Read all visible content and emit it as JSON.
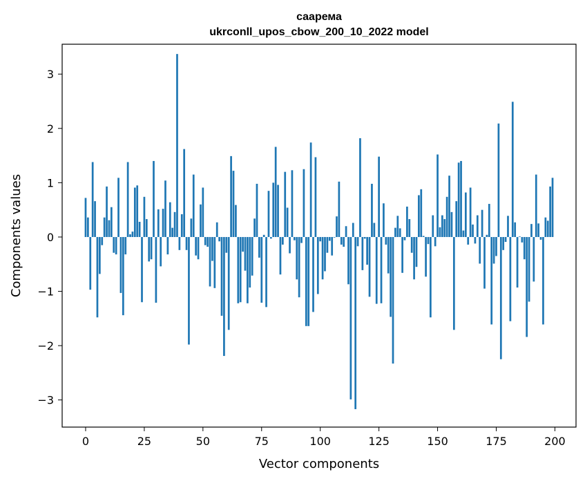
{
  "chart_data": {
    "type": "bar",
    "title_lines": [
      "саарема",
      "ukrconll_upos_cbow_200_10_2022 model"
    ],
    "xlabel": "Vector components",
    "ylabel": "Components values",
    "xlim": [
      -10,
      209
    ],
    "ylim": [
      -3.5,
      3.55
    ],
    "x_ticks": [
      0,
      25,
      50,
      75,
      100,
      125,
      150,
      175,
      200
    ],
    "x_tick_labels": [
      "0",
      "25",
      "50",
      "75",
      "100",
      "125",
      "150",
      "175",
      "200"
    ],
    "y_ticks": [
      -3,
      -2,
      -1,
      0,
      1,
      2,
      3
    ],
    "y_tick_labels": [
      "−3",
      "−2",
      "−1",
      "0",
      "1",
      "2",
      "3"
    ],
    "grid": false,
    "bar_color": "#1f77b4",
    "values": [
      0.72,
      0.36,
      -0.97,
      1.38,
      0.66,
      -1.48,
      -0.68,
      -0.15,
      0.36,
      0.93,
      0.31,
      0.55,
      -0.29,
      -0.32,
      1.09,
      -1.03,
      -1.44,
      -0.32,
      1.38,
      0.05,
      0.1,
      0.91,
      0.95,
      0.28,
      -1.2,
      0.74,
      0.33,
      -0.45,
      -0.41,
      1.4,
      -1.21,
      0.51,
      -0.54,
      0.52,
      1.04,
      -0.32,
      0.64,
      0.17,
      0.46,
      3.37,
      -0.24,
      0.42,
      1.62,
      -0.24,
      -1.98,
      0.34,
      1.15,
      -0.34,
      -0.41,
      0.6,
      0.91,
      -0.15,
      -0.18,
      -0.91,
      -0.44,
      -0.94,
      0.27,
      -0.08,
      -1.45,
      -2.19,
      -0.29,
      -1.71,
      1.49,
      1.22,
      0.59,
      -1.22,
      -1.2,
      -0.27,
      -0.62,
      -1.22,
      -0.93,
      -0.71,
      0.34,
      0.98,
      -0.38,
      -1.21,
      0.04,
      -1.29,
      0.85,
      -0.03,
      1.0,
      1.66,
      0.96,
      -0.69,
      -0.14,
      1.2,
      0.54,
      -0.3,
      1.23,
      -0.06,
      -0.78,
      -1.11,
      -0.11,
      1.25,
      -1.64,
      -1.64,
      1.74,
      -1.38,
      1.47,
      -1.05,
      -0.08,
      -0.78,
      -0.63,
      -0.29,
      -0.07,
      -0.34,
      -0.01,
      0.38,
      1.02,
      -0.14,
      -0.18,
      0.2,
      -0.87,
      -2.99,
      0.26,
      -3.17,
      -0.17,
      1.82,
      -0.61,
      -0.03,
      -0.51,
      -1.1,
      0.98,
      0.26,
      -1.23,
      1.48,
      -1.22,
      0.62,
      -0.14,
      -0.67,
      -1.47,
      -2.33,
      0.17,
      0.39,
      0.16,
      -0.66,
      -0.06,
      0.56,
      0.33,
      -0.29,
      -0.78,
      -0.55,
      0.77,
      0.88,
      0.02,
      -0.73,
      -0.13,
      -1.48,
      0.4,
      -0.17,
      1.52,
      0.18,
      0.4,
      0.33,
      0.74,
      1.13,
      0.46,
      -1.71,
      0.66,
      1.37,
      1.4,
      0.12,
      0.82,
      -0.14,
      0.91,
      0.23,
      -0.12,
      0.4,
      -0.49,
      0.5,
      -0.95,
      0.04,
      0.61,
      -1.61,
      -0.49,
      -0.35,
      2.09,
      -2.25,
      -0.24,
      -0.09,
      0.39,
      -1.55,
      2.49,
      0.27,
      -0.93,
      0.01,
      -0.1,
      -0.41,
      -1.84,
      -1.19,
      0.24,
      -0.82,
      1.15,
      0.25,
      -0.05,
      -1.61,
      0.36,
      0.3,
      0.93,
      1.09
    ]
  }
}
